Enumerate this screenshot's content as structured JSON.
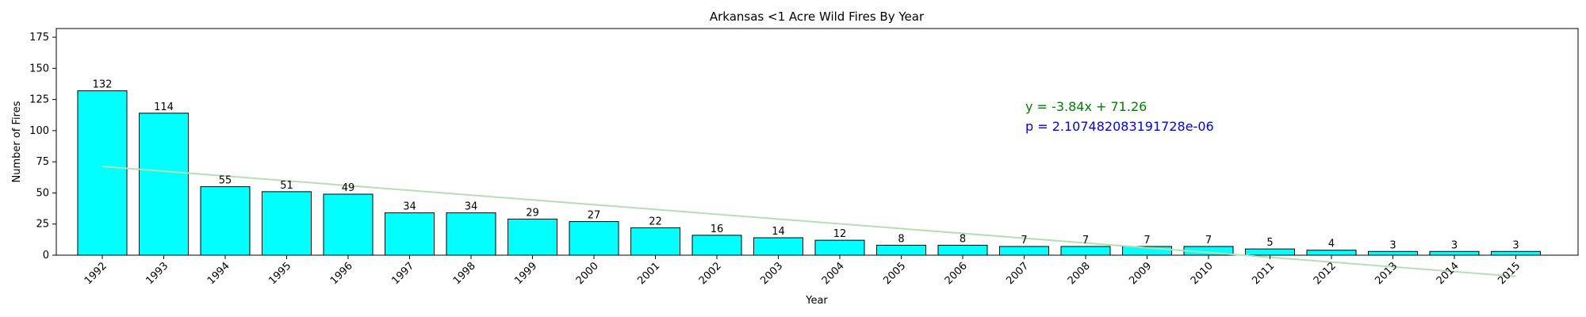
{
  "chart_data": {
    "type": "bar",
    "title": "Arkansas <1 Acre Wild Fires By Year",
    "xlabel": "Year",
    "ylabel": "Number of Fires",
    "categories": [
      "1992",
      "1993",
      "1994",
      "1995",
      "1996",
      "1997",
      "1998",
      "1999",
      "2000",
      "2001",
      "2002",
      "2003",
      "2004",
      "2005",
      "2006",
      "2007",
      "2008",
      "2009",
      "2010",
      "2011",
      "2012",
      "2013",
      "2014",
      "2015"
    ],
    "values": [
      132,
      114,
      55,
      51,
      49,
      34,
      34,
      29,
      27,
      22,
      16,
      14,
      12,
      8,
      8,
      7,
      7,
      7,
      7,
      5,
      4,
      3,
      3,
      3
    ],
    "ylim": [
      0,
      182
    ],
    "yticks": [
      "0",
      "25",
      "50",
      "75",
      "100",
      "125",
      "150",
      "175"
    ],
    "bar_color": "#00ffff",
    "bar_edge_color": "#000000",
    "trendline": {
      "slope": -3.84,
      "intercept": 71.26,
      "color": "#b5deb5"
    },
    "annotations": {
      "equation": "y = -3.84x + 71.26",
      "equation_color": "#008000",
      "p_value": "p = 2.107482083191728e-06",
      "p_value_color": "#0000ff"
    },
    "grid": false,
    "legend": "none"
  }
}
